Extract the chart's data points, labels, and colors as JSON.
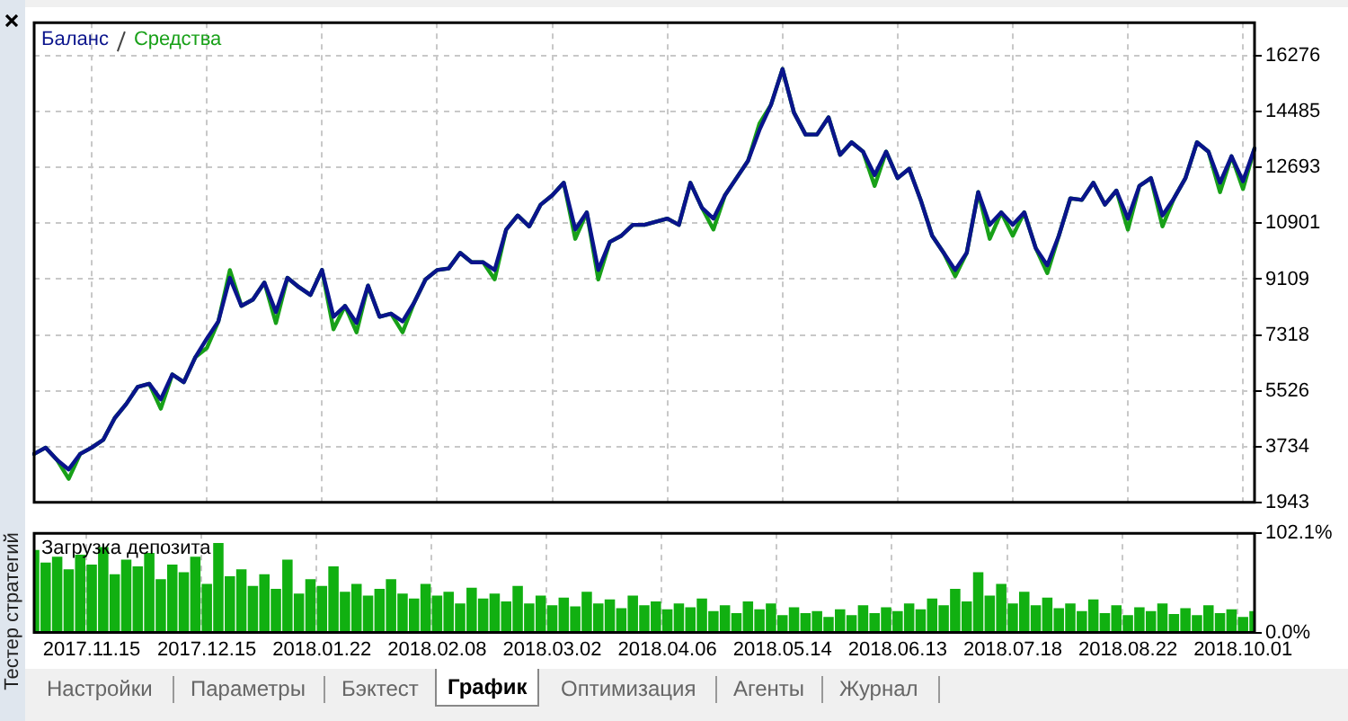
{
  "chart_data": [
    {
      "type": "line",
      "legend": "top left",
      "annotations": [
        "Тестер стратегий",
        "Настройки",
        "Параметры",
        "Бэктест",
        "График",
        "Оптимизация",
        "Агенты",
        "Журнал"
      ],
      "grid": true,
      "tick_labels": "y",
      "marker": "none",
      "line_style": "solid",
      "categories": [
        null,
        null,
        null,
        null,
        null,
        "2017.11.15",
        null,
        null,
        null,
        null,
        null,
        null,
        null,
        null,
        null,
        "2017.12.15",
        null,
        null,
        null,
        null,
        null,
        null,
        null,
        null,
        null,
        "2018.01.22",
        null,
        null,
        null,
        null,
        null,
        null,
        null,
        null,
        null,
        "2018.02.08",
        null,
        null,
        null,
        null,
        null,
        null,
        null,
        null,
        null,
        "2018.03.02",
        null,
        null,
        null,
        null,
        null,
        null,
        null,
        null,
        null,
        "2018.04.06",
        null,
        null,
        null,
        null,
        null,
        null,
        null,
        null,
        null,
        "2018.05.14",
        null,
        null,
        null,
        null,
        null,
        null,
        null,
        null,
        null,
        "2018.06.13",
        null,
        null,
        null,
        null,
        null,
        null,
        null,
        null,
        null,
        "2018.07.18",
        null,
        null,
        null,
        null,
        null,
        null,
        null,
        null,
        null,
        "2018.08.22",
        null,
        null,
        null,
        null,
        null,
        null,
        null,
        null,
        null,
        "2018.10.01",
        null
      ],
      "ylim": [
        1943,
        17340
      ],
      "yticks": [
        1943,
        3734,
        5526,
        7318,
        9109,
        10901,
        12693,
        14485,
        16276
      ],
      "series": [
        {
          "name": "Баланс",
          "color": "#0a148c",
          "values": [
            3500,
            3700,
            3300,
            3000,
            3500,
            3700,
            3950,
            4650,
            5100,
            5650,
            5750,
            5250,
            6050,
            5800,
            6600,
            7200,
            7750,
            9150,
            8250,
            8450,
            9000,
            8050,
            9150,
            8850,
            8600,
            9400,
            7900,
            8250,
            7700,
            8900,
            7900,
            8000,
            7750,
            8350,
            9100,
            9400,
            9450,
            9950,
            9650,
            9650,
            9400,
            10700,
            11150,
            10800,
            11500,
            11800,
            12200,
            10700,
            11250,
            9400,
            10300,
            10500,
            10850,
            10850,
            10950,
            11050,
            10850,
            12200,
            11400,
            11050,
            11800,
            12350,
            12900,
            13900,
            14700,
            15850,
            14450,
            13750,
            13750,
            14300,
            13100,
            13500,
            13200,
            12450,
            13200,
            12350,
            12650,
            11650,
            10500,
            9950,
            9400,
            9950,
            11900,
            10850,
            11250,
            10850,
            11250,
            10100,
            9550,
            10500,
            11700,
            11650,
            12200,
            11500,
            11950,
            11050,
            12100,
            12350,
            11150,
            11700,
            12350,
            13500,
            13200,
            12200,
            13050,
            12250,
            13300
          ]
        },
        {
          "name": "Средства",
          "color": "#18a018",
          "values": [
            3500,
            3700,
            3300,
            2700,
            3500,
            3700,
            3950,
            4650,
            5100,
            5650,
            5750,
            4950,
            6050,
            5800,
            6600,
            6900,
            7750,
            9400,
            8250,
            8450,
            9000,
            7700,
            9150,
            8850,
            8600,
            9400,
            7500,
            8250,
            7400,
            8900,
            7900,
            8000,
            7400,
            8350,
            9100,
            9400,
            9450,
            9950,
            9650,
            9650,
            9100,
            10700,
            11150,
            10800,
            11500,
            11800,
            12200,
            10400,
            11250,
            9100,
            10300,
            10500,
            10850,
            10850,
            10950,
            11050,
            10850,
            12200,
            11400,
            10700,
            11800,
            12350,
            12900,
            14100,
            14700,
            15850,
            14450,
            13750,
            13750,
            14300,
            13100,
            13500,
            13200,
            12100,
            13200,
            12350,
            12650,
            11650,
            10500,
            9950,
            9200,
            9950,
            11900,
            10400,
            11250,
            10500,
            11250,
            10100,
            9300,
            10500,
            11700,
            11650,
            12200,
            11500,
            11950,
            10700,
            12100,
            12350,
            10800,
            11700,
            12350,
            13500,
            13200,
            11900,
            13050,
            12000,
            13300
          ]
        }
      ]
    },
    {
      "type": "bar",
      "title": "Загрузка депозита",
      "grid": "x",
      "categories": [
        null,
        null,
        null,
        null,
        null,
        "2017.11.15",
        null,
        null,
        null,
        null,
        null,
        null,
        null,
        null,
        null,
        "2017.12.15",
        null,
        null,
        null,
        null,
        null,
        null,
        null,
        null,
        null,
        "2018.01.22",
        null,
        null,
        null,
        null,
        null,
        null,
        null,
        null,
        null,
        "2018.02.08",
        null,
        null,
        null,
        null,
        null,
        null,
        null,
        null,
        null,
        "2018.03.02",
        null,
        null,
        null,
        null,
        null,
        null,
        null,
        null,
        null,
        "2018.04.06",
        null,
        null,
        null,
        null,
        null,
        null,
        null,
        null,
        null,
        "2018.05.14",
        null,
        null,
        null,
        null,
        null,
        null,
        null,
        null,
        null,
        "2018.06.13",
        null,
        null,
        null,
        null,
        null,
        null,
        null,
        null,
        null,
        "2018.07.18",
        null,
        null,
        null,
        null,
        null,
        null,
        null,
        null,
        null,
        "2018.08.22",
        null,
        null,
        null,
        null,
        null,
        null,
        null,
        null,
        null,
        "2018.10.01",
        null
      ],
      "ylim": [
        0,
        102.1
      ],
      "yticks": [
        {
          "value": 0,
          "label": "0.0%"
        },
        {
          "value": 102.1,
          "label": "102.1%"
        }
      ],
      "color": "#11b011",
      "values": [
        85,
        72,
        78,
        65,
        80,
        70,
        88,
        60,
        75,
        68,
        82,
        55,
        70,
        62,
        78,
        50,
        92,
        58,
        65,
        48,
        60,
        45,
        75,
        40,
        55,
        48,
        68,
        42,
        50,
        38,
        45,
        55,
        40,
        35,
        50,
        38,
        42,
        30,
        46,
        35,
        40,
        32,
        48,
        30,
        38,
        28,
        36,
        27,
        42,
        30,
        34,
        25,
        38,
        28,
        32,
        24,
        30,
        26,
        35,
        22,
        28,
        20,
        32,
        24,
        30,
        18,
        26,
        20,
        22,
        16,
        24,
        18,
        28,
        20,
        26,
        22,
        30,
        24,
        35,
        28,
        45,
        32,
        62,
        38,
        50,
        30,
        42,
        28,
        36,
        25,
        30,
        22,
        34,
        20,
        28,
        18,
        26,
        22,
        30,
        19,
        25,
        18,
        28,
        20,
        24,
        16,
        22
      ]
    }
  ]
}
